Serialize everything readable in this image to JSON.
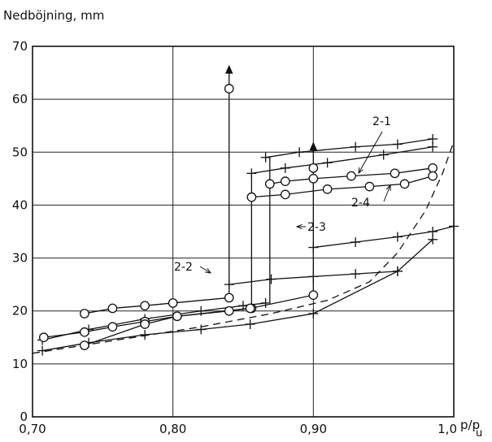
{
  "chart_data": {
    "type": "line",
    "title": "",
    "ylabel": "Nedböjning, mm",
    "xlabel": "p/p",
    "xlabel_subscript": "u",
    "xlim": [
      0.7,
      1.0
    ],
    "ylim": [
      0,
      70
    ],
    "x_tick_labels": [
      {
        "value": 0.7,
        "label": "0,70"
      },
      {
        "value": 0.8,
        "label": "0,80"
      },
      {
        "value": 0.9,
        "label": "0,90"
      },
      {
        "value": 1.0,
        "label": "1,0"
      }
    ],
    "y_tick_labels": [
      {
        "value": 0,
        "label": "0"
      },
      {
        "value": 10,
        "label": "10"
      },
      {
        "value": 20,
        "label": "20"
      },
      {
        "value": 30,
        "label": "30"
      },
      {
        "value": 40,
        "label": "40"
      },
      {
        "value": 50,
        "label": "50"
      },
      {
        "value": 60,
        "label": "60"
      },
      {
        "value": 70,
        "label": "70"
      }
    ],
    "grid": true,
    "series": [
      {
        "name": "2-1",
        "marker": "cross",
        "style": "solid",
        "x": [
          0.707,
          0.74,
          0.78,
          0.82,
          0.85,
          0.866
        ],
        "y": [
          14.5,
          16.5,
          18.5,
          20.0,
          21.0,
          21.5
        ]
      },
      {
        "name": "2-1",
        "marker": "cross",
        "style": "solid",
        "x": [
          0.866,
          0.89,
          0.93,
          0.96,
          0.985
        ],
        "y": [
          49.0,
          50.0,
          51.0,
          51.5,
          52.5
        ]
      },
      {
        "name": "2-1",
        "marker": "cross",
        "style": "solid",
        "x": [
          0.856,
          0.88,
          0.91,
          0.95,
          0.985
        ],
        "y": [
          46.0,
          47.0,
          48.0,
          49.5,
          51.0
        ]
      },
      {
        "name": "2-4",
        "marker": "circle",
        "style": "solid",
        "x": [
          0.708,
          0.737,
          0.757,
          0.78,
          0.803,
          0.84,
          0.856
        ],
        "y": [
          15.0,
          16.0,
          17.0,
          18.0,
          19.0,
          20.0,
          20.5
        ]
      },
      {
        "name": "2-4",
        "marker": "circle",
        "style": "solid",
        "x": [
          0.869,
          0.88,
          0.9,
          0.927,
          0.958,
          0.985
        ],
        "y": [
          44.0,
          44.5,
          45.0,
          45.5,
          46.0,
          47.0
        ]
      },
      {
        "name": "2-4",
        "marker": "circle",
        "style": "solid",
        "x": [
          0.856,
          0.88,
          0.91,
          0.94,
          0.965,
          0.985
        ],
        "y": [
          41.5,
          42.0,
          43.0,
          43.5,
          44.0,
          45.5
        ]
      },
      {
        "name": "2-2",
        "marker": "circle",
        "style": "solid",
        "x": [
          0.737,
          0.757,
          0.78,
          0.8,
          0.84
        ],
        "y": [
          19.5,
          20.5,
          21.0,
          21.5,
          22.5
        ]
      },
      {
        "name": "2-3",
        "marker": "cross",
        "style": "solid",
        "x": [
          0.84,
          0.87,
          0.9,
          0.93,
          0.96
        ],
        "y": [
          25.0,
          26.0,
          26.5,
          27.0,
          27.5
        ]
      },
      {
        "name": "2-3",
        "marker": "cross",
        "style": "solid",
        "x": [
          0.9,
          0.93,
          0.96,
          0.985,
          1.0
        ],
        "y": [
          32.0,
          33.0,
          34.0,
          35.0,
          36.0
        ]
      },
      {
        "name": "",
        "marker": "cross",
        "style": "solid",
        "x": [
          0.707,
          0.74,
          0.78,
          0.82,
          0.855,
          0.9,
          0.96,
          0.985
        ],
        "y": [
          12.5,
          14.0,
          15.5,
          16.5,
          17.5,
          19.5,
          27.5,
          33.5
        ]
      },
      {
        "name": "",
        "marker": "circle",
        "style": "solid",
        "x": [
          0.737,
          0.78,
          0.803,
          0.855,
          0.9
        ],
        "y": [
          13.5,
          17.5,
          19.0,
          20.5,
          23.0
        ]
      },
      {
        "name": "",
        "marker": "none",
        "style": "dashed",
        "x": [
          0.7,
          0.76,
          0.82,
          0.87,
          0.91,
          0.94,
          0.96,
          0.98,
          0.992,
          1.0
        ],
        "y": [
          12.0,
          14.5,
          17.0,
          19.5,
          22.0,
          25.5,
          31.0,
          39.0,
          46.0,
          52.0
        ]
      }
    ],
    "verticals": [
      {
        "x": 0.84,
        "y1": 22.5,
        "y2": 62.0,
        "arrow": true
      },
      {
        "x": 0.856,
        "y1": 20.5,
        "y2": 46.0,
        "arrow": false
      },
      {
        "x": 0.869,
        "y1": 21.5,
        "y2": 49.0,
        "arrow": false
      },
      {
        "x": 0.9,
        "y1": 23.0,
        "y2": 47.5,
        "arrow": true
      }
    ],
    "singles": [
      {
        "x": 0.84,
        "y": 62.0,
        "marker": "circle"
      },
      {
        "x": 0.9,
        "y": 47.0,
        "marker": "circle"
      }
    ],
    "annotations": [
      {
        "text": "2-1"
      },
      {
        "text": "2-4"
      },
      {
        "text": "2-3"
      },
      {
        "text": "2-2"
      }
    ]
  }
}
